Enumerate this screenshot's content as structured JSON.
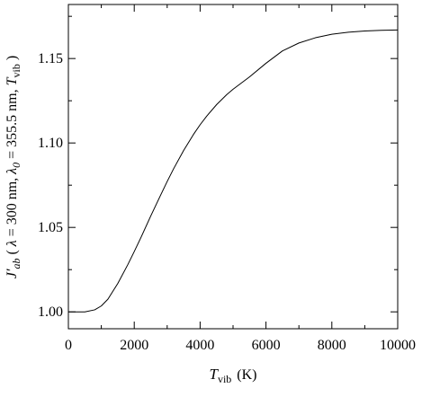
{
  "chart_data": {
    "type": "line",
    "title": "",
    "xlabel": {
      "main": "T",
      "sub": "vib",
      "unit": "(K)"
    },
    "ylabel": {
      "parts": [
        {
          "text": "J′",
          "style": "italic"
        },
        {
          "text": "ab",
          "style": "italic-sub"
        },
        {
          "text": " ( ",
          "style": "normal"
        },
        {
          "text": "λ",
          "style": "italic"
        },
        {
          "text": " = 300 nm, ",
          "style": "normal"
        },
        {
          "text": "λ",
          "style": "italic"
        },
        {
          "text": "0",
          "style": "italic-sub"
        },
        {
          "text": " = 355.5 nm, ",
          "style": "normal"
        },
        {
          "text": "T",
          "style": "italic"
        },
        {
          "text": "vib",
          "style": "sub"
        },
        {
          "text": " )",
          "style": "normal"
        }
      ]
    },
    "xlim": [
      0,
      10000
    ],
    "ylim": [
      0.99,
      1.182
    ],
    "x_ticks": [
      0,
      2000,
      4000,
      6000,
      8000,
      10000
    ],
    "x_tick_labels": [
      "0",
      "2000",
      "4000",
      "6000",
      "8000",
      "10000"
    ],
    "y_ticks": [
      1.0,
      1.05,
      1.1,
      1.15
    ],
    "y_tick_labels": [
      "1.00",
      "1.05",
      "1.10",
      "1.15"
    ],
    "grid": false,
    "legend": "none",
    "series": [
      {
        "color": "#000000",
        "x": [
          0,
          500,
          800,
          1000,
          1200,
          1500,
          1800,
          2000,
          2200,
          2500,
          2800,
          3000,
          3200,
          3500,
          3800,
          4000,
          4200,
          4500,
          4800,
          5000,
          5500,
          6000,
          6500,
          7000,
          7500,
          8000,
          8500,
          9000,
          9500,
          10000
        ],
        "y": [
          1.0,
          1.0,
          1.0012,
          1.0035,
          1.0075,
          1.0168,
          1.0278,
          1.0357,
          1.0439,
          1.0567,
          1.0691,
          1.0772,
          1.0849,
          1.0956,
          1.1051,
          1.1108,
          1.1159,
          1.1227,
          1.1285,
          1.1318,
          1.1391,
          1.1472,
          1.1545,
          1.1592,
          1.1623,
          1.1644,
          1.1656,
          1.1663,
          1.1667,
          1.1669
        ]
      }
    ]
  }
}
